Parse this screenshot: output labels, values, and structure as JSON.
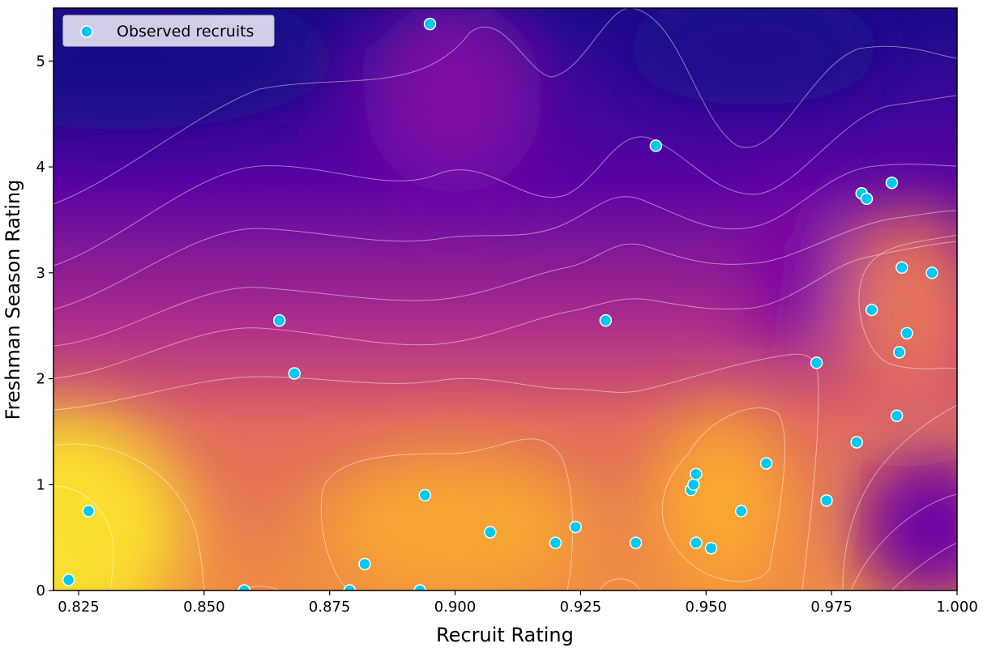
{
  "chart_data": {
    "type": "scatter",
    "title": "",
    "xlabel": "Recruit Rating",
    "ylabel": "Freshman Season Rating",
    "xlim": [
      0.82,
      1.0
    ],
    "ylim": [
      0,
      5.5
    ],
    "xticks": [
      "0.825",
      "0.850",
      "0.875",
      "0.900",
      "0.925",
      "0.950",
      "0.975",
      "1.000"
    ],
    "yticks": [
      "0",
      "1",
      "2",
      "3",
      "4",
      "5"
    ],
    "legend": {
      "placement": "top-left",
      "entries": [
        "Observed recruits"
      ]
    },
    "background": "density heatmap with contour lines, plasma colormap (yellow = high, dark purple = low)",
    "colors": {
      "points": "#00c8f0",
      "point_edge": "#ffffff",
      "contour": "#ffffff"
    },
    "series": [
      {
        "name": "Observed recruits",
        "points": [
          [
            0.823,
            0.1
          ],
          [
            0.827,
            0.75
          ],
          [
            0.858,
            0.0
          ],
          [
            0.865,
            2.55
          ],
          [
            0.868,
            2.05
          ],
          [
            0.879,
            0.0
          ],
          [
            0.882,
            0.25
          ],
          [
            0.893,
            0.0
          ],
          [
            0.894,
            0.9
          ],
          [
            0.895,
            5.35
          ],
          [
            0.907,
            0.55
          ],
          [
            0.92,
            0.45
          ],
          [
            0.924,
            0.6
          ],
          [
            0.93,
            2.55
          ],
          [
            0.936,
            0.45
          ],
          [
            0.94,
            4.2
          ],
          [
            0.947,
            0.95
          ],
          [
            0.9475,
            1.0
          ],
          [
            0.948,
            1.1
          ],
          [
            0.948,
            0.45
          ],
          [
            0.951,
            0.4
          ],
          [
            0.957,
            0.75
          ],
          [
            0.962,
            1.2
          ],
          [
            0.972,
            2.15
          ],
          [
            0.974,
            0.85
          ],
          [
            0.98,
            1.4
          ],
          [
            0.981,
            3.75
          ],
          [
            0.982,
            3.7
          ],
          [
            0.983,
            2.65
          ],
          [
            0.987,
            3.85
          ],
          [
            0.988,
            1.65
          ],
          [
            0.9885,
            2.25
          ],
          [
            0.989,
            3.05
          ],
          [
            0.99,
            2.43
          ],
          [
            0.995,
            3.0
          ]
        ]
      }
    ]
  }
}
